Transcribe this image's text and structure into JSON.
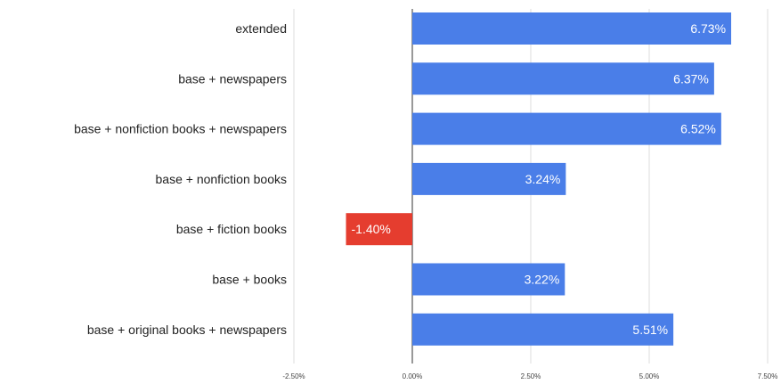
{
  "chart_data": {
    "type": "bar",
    "orientation": "horizontal",
    "title": "",
    "xlabel": "",
    "ylabel": "",
    "categories": [
      "extended",
      "base + newspapers",
      "base + nonfiction books + newspapers",
      "base + nonfiction books",
      "base + fiction books",
      "base + books",
      "base + original books + newspapers"
    ],
    "values": [
      6.73,
      6.37,
      6.52,
      3.24,
      -1.4,
      3.22,
      5.51
    ],
    "value_labels": [
      "6.73%",
      "6.37%",
      "6.52%",
      "3.24%",
      "-1.40%",
      "3.22%",
      "5.51%"
    ],
    "xlim": [
      -2.5,
      7.5
    ],
    "x_ticks": [
      -2.5,
      0,
      2.5,
      5,
      7.5
    ],
    "x_tick_labels": [
      "-2.50%",
      "0.00%",
      "2.50%",
      "5.00%",
      "7.50%"
    ],
    "grid": true,
    "legend": "none",
    "colors": {
      "positive": "#4a7ee8",
      "negative": "#e53d2f"
    }
  }
}
